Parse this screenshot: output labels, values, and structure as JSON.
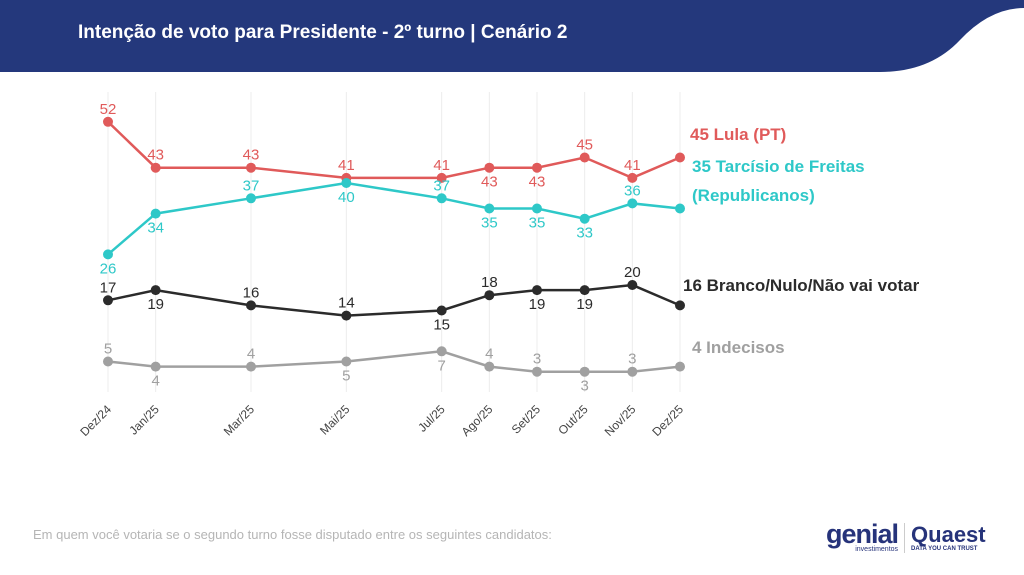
{
  "header": {
    "title": "Intenção de voto para Presidente - 2º turno | Cenário 2",
    "color": "#24387c"
  },
  "footnote": "Em quem você votaria se o segundo turno fosse disputado entre os seguintes candidatos:",
  "logos": {
    "genial": "genial",
    "genial_sub": "investimentos",
    "quaest": "Quaest",
    "quaest_sub": "DATA YOU CAN TRUST"
  },
  "chart_data": {
    "type": "line",
    "categories": [
      "Dez/24",
      "Jan/25",
      "Mar/25",
      "Mai/25",
      "Jul/25",
      "Ago/25",
      "Set/25",
      "Out/25",
      "Nov/25",
      "Dez/25"
    ],
    "grid": "vertical",
    "series": [
      {
        "name": "45 Lula (PT)",
        "color": "#e05a5a",
        "values": [
          52,
          43,
          43,
          41,
          41,
          43,
          43,
          45,
          41,
          45
        ],
        "label_pos": [
          "above",
          "above",
          "above",
          "above",
          "above",
          "below",
          "below",
          "above",
          "above",
          ""
        ]
      },
      {
        "name": "35 Tarcísio de Freitas (Republicanos)",
        "name_lines": [
          "35 Tarcísio de Freitas",
          "(Republicanos)"
        ],
        "color": "#2ec8c8",
        "values": [
          26,
          34,
          37,
          40,
          37,
          35,
          35,
          33,
          36,
          35
        ],
        "label_pos": [
          "below",
          "below",
          "above",
          "below",
          "above",
          "below",
          "below",
          "below",
          "above",
          ""
        ]
      },
      {
        "name": "16 Branco/Nulo/Não vai votar",
        "color": "#2b2b2b",
        "values": [
          17,
          19,
          16,
          14,
          15,
          18,
          19,
          19,
          20,
          16
        ],
        "label_pos": [
          "above",
          "below",
          "above",
          "above",
          "below",
          "above",
          "below",
          "below",
          "above",
          ""
        ]
      },
      {
        "name": "4 Indecisos",
        "color": "#a0a0a0",
        "values": [
          5,
          4,
          4,
          5,
          7,
          4,
          3,
          3,
          3,
          4
        ],
        "label_pos": [
          "above",
          "below",
          "above",
          "below",
          "below",
          "above",
          "above",
          "below",
          "above",
          ""
        ]
      }
    ]
  }
}
